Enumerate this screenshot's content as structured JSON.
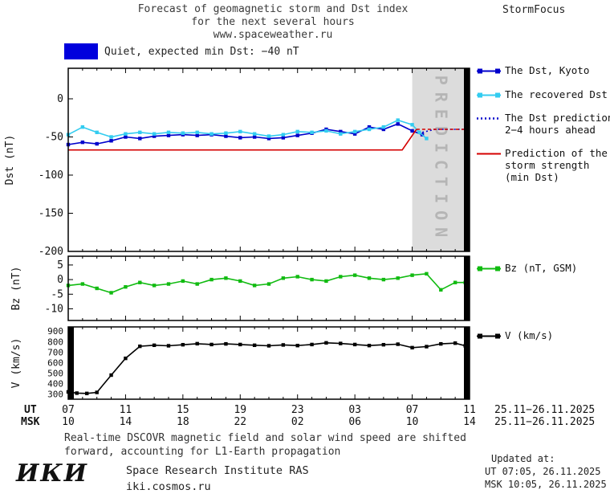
{
  "header": {
    "line1": "Forecast of geomagnetic storm and Dst index",
    "line2": "for the next several hours",
    "line3": "www.spaceweather.ru",
    "brand": "StormFocus"
  },
  "banner": {
    "label": "Quiet, expected min Dst: −40 nT"
  },
  "colors": {
    "dst_kyoto": "#0000cc",
    "recovered": "#33ccf0",
    "prediction": "#0000cc",
    "strength": "#d40000",
    "bz": "#11bb11",
    "v": "#000000",
    "quiet_swatch": "#0000dd",
    "band_fill": "#dcdcdc",
    "band_text": "#b5b5b5"
  },
  "legend": {
    "dst_kyoto": {
      "label": "The Dst, Kyoto"
    },
    "recovered": {
      "label": "The recovered Dst"
    },
    "prediction": {
      "lines": [
        "The Dst prediction",
        "2−4 hours ahead"
      ]
    },
    "strength": {
      "lines": [
        "Prediction of the",
        "storm strength",
        "(min Dst)"
      ]
    },
    "bz": {
      "label": "Bz (nT, GSM)"
    },
    "v": {
      "label": "V (km/s)"
    }
  },
  "time_axis": {
    "ticks": [
      7,
      11,
      15,
      19,
      23,
      27,
      31,
      35
    ],
    "ut_values": [
      "07",
      "11",
      "15",
      "19",
      "23",
      "03",
      "07",
      "11"
    ],
    "msk_values": [
      "10",
      "14",
      "18",
      "22",
      "02",
      "06",
      "10",
      "14"
    ],
    "ut_label": "UT",
    "msk_label": "MSK",
    "date_range": "25.11−26.11.2025"
  },
  "footer": {
    "line1": "Real-time DSCOVR magnetic field and solar wind speed are shifted",
    "line2": "forward, accounting for L1-Earth propagation"
  },
  "branding": {
    "logo": "ИКИ",
    "institute": "Space Research Institute RAS",
    "site": "iki.cosmos.ru"
  },
  "updated": {
    "title": "Updated at:",
    "ut": "UT  07:05, 26.11.2025",
    "msk": "MSK 10:05, 26.11.2025"
  },
  "chart_data": [
    {
      "id": "dst",
      "type": "line",
      "ylabel": "Dst (nT)",
      "ylim": [
        -200,
        40
      ],
      "yticks": [
        0,
        -50,
        -100,
        -150,
        -200
      ],
      "xlim": [
        7,
        35
      ],
      "xticks": [
        7,
        11,
        15,
        19,
        23,
        27,
        31,
        35
      ],
      "band": {
        "start": 31,
        "end": 35,
        "label": "PREDICTION"
      },
      "edge_bars": [
        "right"
      ],
      "series": [
        {
          "name": "The Dst, Kyoto",
          "color": "#0000cc",
          "style": "solid",
          "marker": true,
          "points": [
            [
              7,
              -60
            ],
            [
              8,
              -57
            ],
            [
              9,
              -59
            ],
            [
              10,
              -55
            ],
            [
              11,
              -50
            ],
            [
              12,
              -52
            ],
            [
              13,
              -49
            ],
            [
              14,
              -48
            ],
            [
              15,
              -47
            ],
            [
              16,
              -48
            ],
            [
              17,
              -47
            ],
            [
              18,
              -49
            ],
            [
              19,
              -51
            ],
            [
              20,
              -50
            ],
            [
              21,
              -52
            ],
            [
              22,
              -51
            ],
            [
              23,
              -48
            ],
            [
              24,
              -45
            ],
            [
              25,
              -40
            ],
            [
              26,
              -43
            ],
            [
              27,
              -46
            ],
            [
              28,
              -37
            ],
            [
              29,
              -40
            ],
            [
              30,
              -33
            ],
            [
              31,
              -42
            ],
            [
              31.7,
              -47
            ]
          ]
        },
        {
          "name": "The recovered Dst",
          "color": "#33ccf0",
          "style": "solid",
          "marker": true,
          "points": [
            [
              7,
              -47
            ],
            [
              8,
              -37
            ],
            [
              9,
              -44
            ],
            [
              10,
              -50
            ],
            [
              11,
              -46
            ],
            [
              12,
              -44
            ],
            [
              13,
              -46
            ],
            [
              14,
              -44
            ],
            [
              15,
              -45
            ],
            [
              16,
              -44
            ],
            [
              17,
              -46
            ],
            [
              18,
              -45
            ],
            [
              19,
              -43
            ],
            [
              20,
              -46
            ],
            [
              21,
              -49
            ],
            [
              22,
              -47
            ],
            [
              23,
              -43
            ],
            [
              24,
              -44
            ],
            [
              25,
              -42
            ],
            [
              26,
              -46
            ],
            [
              27,
              -43
            ],
            [
              28,
              -40
            ],
            [
              29,
              -37
            ],
            [
              30,
              -28
            ],
            [
              31,
              -34
            ],
            [
              31.5,
              -44
            ],
            [
              32,
              -52
            ]
          ]
        },
        {
          "name": "The Dst prediction 2−4 hours ahead",
          "color": "#0000cc",
          "style": "dotted",
          "marker": false,
          "points": [
            [
              31.7,
              -44
            ],
            [
              32.6,
              -40
            ],
            [
              35,
              -40
            ]
          ]
        },
        {
          "name": "Prediction of the storm strength (min Dst)",
          "color": "#d40000",
          "style": "solid",
          "marker": false,
          "points": [
            [
              7,
              -67
            ],
            [
              30.3,
              -67
            ],
            [
              31.3,
              -40
            ]
          ]
        },
        {
          "name": "Prediction of the storm strength (forecast segment)",
          "color": "#d40000",
          "style": "dashed",
          "marker": false,
          "points": [
            [
              31.3,
              -40
            ],
            [
              35,
              -40
            ]
          ]
        }
      ]
    },
    {
      "id": "bz",
      "type": "line",
      "ylabel": "Bz (nT)",
      "ylim": [
        -14,
        8
      ],
      "yticks": [
        5,
        0,
        -5,
        -10
      ],
      "xlim": [
        7,
        35
      ],
      "xticks": [
        7,
        11,
        15,
        19,
        23,
        27,
        31,
        35
      ],
      "edge_bars": [
        "right"
      ],
      "series": [
        {
          "name": "Bz (nT, GSM)",
          "color": "#11bb11",
          "style": "solid",
          "marker": true,
          "points": [
            [
              7,
              -2
            ],
            [
              8,
              -1.5
            ],
            [
              9,
              -3
            ],
            [
              10,
              -4.5
            ],
            [
              11,
              -2.5
            ],
            [
              12,
              -1
            ],
            [
              13,
              -2
            ],
            [
              14,
              -1.5
            ],
            [
              15,
              -0.5
            ],
            [
              16,
              -1.5
            ],
            [
              17,
              0
            ],
            [
              18,
              0.5
            ],
            [
              19,
              -0.5
            ],
            [
              20,
              -2
            ],
            [
              21,
              -1.5
            ],
            [
              22,
              0.5
            ],
            [
              23,
              1
            ],
            [
              24,
              0
            ],
            [
              25,
              -0.5
            ],
            [
              26,
              1
            ],
            [
              27,
              1.5
            ],
            [
              28,
              0.5
            ],
            [
              29,
              0
            ],
            [
              30,
              0.5
            ],
            [
              31,
              1.5
            ],
            [
              32,
              2
            ],
            [
              33,
              -3.5
            ],
            [
              34,
              -1
            ],
            [
              34.7,
              -1
            ]
          ]
        }
      ]
    },
    {
      "id": "v",
      "type": "line",
      "ylabel": "V (km/s)",
      "ylim": [
        250,
        940
      ],
      "yticks": [
        900,
        800,
        700,
        600,
        500,
        400,
        300
      ],
      "xlim": [
        7,
        35
      ],
      "xticks": [
        7,
        11,
        15,
        19,
        23,
        27,
        31,
        35
      ],
      "edge_bars": [
        "left",
        "right"
      ],
      "series": [
        {
          "name": "V (km/s)",
          "color": "#000000",
          "style": "solid",
          "marker": true,
          "points": [
            [
              7,
              320
            ],
            [
              7.6,
              308
            ],
            [
              8.3,
              305
            ],
            [
              9,
              315
            ],
            [
              10,
              480
            ],
            [
              11,
              640
            ],
            [
              12,
              755
            ],
            [
              13,
              765
            ],
            [
              14,
              760
            ],
            [
              15,
              770
            ],
            [
              16,
              780
            ],
            [
              17,
              772
            ],
            [
              18,
              778
            ],
            [
              19,
              772
            ],
            [
              20,
              765
            ],
            [
              21,
              760
            ],
            [
              22,
              768
            ],
            [
              23,
              762
            ],
            [
              24,
              772
            ],
            [
              25,
              788
            ],
            [
              26,
              782
            ],
            [
              27,
              772
            ],
            [
              28,
              762
            ],
            [
              29,
              770
            ],
            [
              30,
              775
            ],
            [
              31,
              742
            ],
            [
              32,
              752
            ],
            [
              33,
              778
            ],
            [
              34,
              785
            ],
            [
              34.7,
              760
            ]
          ]
        }
      ]
    }
  ]
}
